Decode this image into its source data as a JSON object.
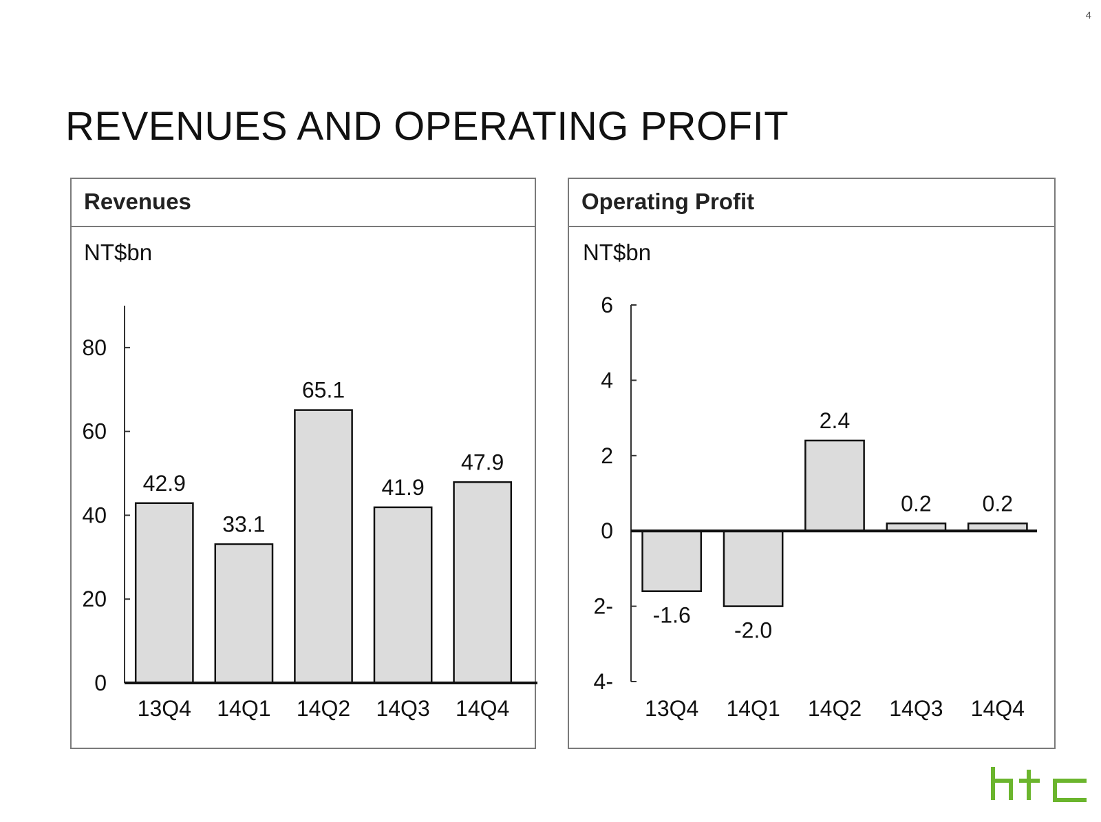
{
  "page_number": "4",
  "title": "REVENUES AND OPERATING PROFIT",
  "brand": {
    "logo_text": "htc",
    "color": "#6bb52d"
  },
  "colors": {
    "bar_fill": "#dcdcdc",
    "bar_stroke": "#111111",
    "panel_border": "#7a7a7a"
  },
  "chart_data": [
    {
      "type": "bar",
      "title": "Revenues",
      "ylabel": "NT$bn",
      "categories": [
        "13Q4",
        "14Q1",
        "14Q2",
        "14Q3",
        "14Q4"
      ],
      "values": [
        42.9,
        33.1,
        65.1,
        41.9,
        47.9
      ],
      "data_labels": [
        "42.9",
        "33.1",
        "65.1",
        "41.9",
        "47.9"
      ],
      "ylim": [
        0,
        90
      ],
      "yticks": [
        0,
        20,
        40,
        60,
        80
      ],
      "ytick_labels": [
        "0",
        "20",
        "40",
        "60",
        "80"
      ],
      "grid": false,
      "legend": "none"
    },
    {
      "type": "bar",
      "title": "Operating Profit",
      "ylabel": "NT$bn",
      "categories": [
        "13Q4",
        "14Q1",
        "14Q2",
        "14Q3",
        "14Q4"
      ],
      "values": [
        -1.6,
        -2.0,
        2.4,
        0.2,
        0.2
      ],
      "data_labels": [
        "-1.6",
        "-2.0",
        "2.4",
        "0.2",
        "0.2"
      ],
      "ylim": [
        -4,
        6
      ],
      "yticks": [
        -4,
        -2,
        0,
        2,
        4,
        6
      ],
      "ytick_labels": [
        "4-",
        "2-",
        "0",
        "2",
        "4",
        "6"
      ],
      "grid": false,
      "legend": "none"
    }
  ]
}
